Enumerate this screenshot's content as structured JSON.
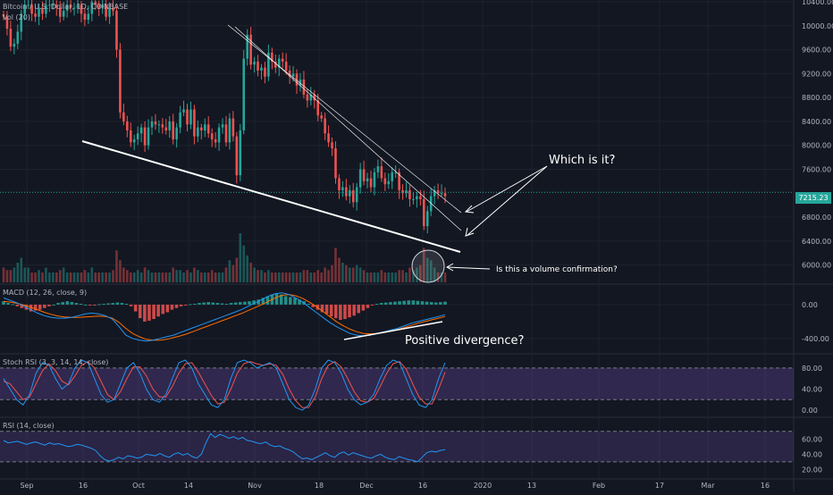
{
  "symbol": {
    "title": "Bitcoin / U.S. Dollar, 1D, COINBASE",
    "vol_label": "Vol (20)",
    "last_price": "7215.23"
  },
  "annotations": {
    "which": "Which is it?",
    "volume": "Is this a volume confirmation?",
    "divergence": "Positive divergence?"
  },
  "indicators": {
    "macd": "MACD (12, 26, close, 9)",
    "stoch": "Stoch RSI (3, 3, 14, 14, close)",
    "rsi": "RSI (14, close)"
  },
  "colors": {
    "background": "#131722",
    "up": "#26a69a",
    "down": "#ef5350",
    "macd_line": "#2196f3",
    "signal_line": "#ff6d00",
    "stoch_k": "#2196f3",
    "stoch_d": "#ef5350",
    "rsi_line": "#2196f3",
    "band": "#7e57c2",
    "price_line": "#26a69a",
    "annotation": "#ffffff"
  },
  "time_axis": [
    "Sep",
    "16",
    "Oct",
    "14",
    "Nov",
    "18",
    "Dec",
    "16",
    "2020",
    "13",
    "Feb",
    "17",
    "Mar",
    "16"
  ],
  "chart_data": [
    {
      "type": "candlestick",
      "title": "Bitcoin / U.S. Dollar, 1D, COINBASE",
      "ylim": [
        5800,
        10400
      ],
      "y_ticks": [
        "10400.00",
        "10000.00",
        "9600.00",
        "9200.00",
        "8800.00",
        "8400.00",
        "8000.00",
        "7600.00",
        "6800.00",
        "6400.00",
        "6000.00"
      ],
      "close": [
        10150,
        9950,
        9650,
        9700,
        9900,
        10200,
        10350,
        10350,
        10200,
        10150,
        10300,
        10200,
        10350,
        10350,
        10350,
        10300,
        10150,
        10250,
        10350,
        10300,
        10300,
        10350,
        10200,
        10100,
        10200,
        10400,
        10350,
        10300,
        10350,
        10150,
        10300,
        10250,
        9600,
        8550,
        8400,
        8250,
        8050,
        8100,
        8200,
        8300,
        8000,
        8300,
        8400,
        8350,
        8350,
        8300,
        8250,
        8400,
        8100,
        8300,
        8550,
        8600,
        8350,
        8600,
        8150,
        8300,
        8250,
        8350,
        8200,
        8100,
        8050,
        8300,
        8350,
        8050,
        8450,
        8150,
        7500,
        8250,
        9450,
        9850,
        9350,
        9400,
        9250,
        9300,
        9150,
        9550,
        9400,
        9300,
        9450,
        9400,
        9250,
        9150,
        9200,
        9000,
        9100,
        8850,
        8750,
        8850,
        8750,
        8500,
        8450,
        8200,
        8050,
        7950,
        7450,
        7250,
        7300,
        7150,
        7250,
        7050,
        7300,
        7600,
        7400,
        7450,
        7300,
        7550,
        7650,
        7450,
        7350,
        7400,
        7550,
        7550,
        7250,
        7200,
        7250,
        7100,
        7100,
        7150,
        7100,
        6650,
        6900,
        7150,
        7250,
        7200,
        7200,
        7150
      ],
      "volume_rel": [
        0.3,
        0.25,
        0.25,
        0.3,
        0.4,
        0.5,
        0.3,
        0.3,
        0.2,
        0.2,
        0.25,
        0.2,
        0.3,
        0.2,
        0.2,
        0.2,
        0.25,
        0.3,
        0.2,
        0.2,
        0.2,
        0.2,
        0.2,
        0.25,
        0.2,
        0.3,
        0.2,
        0.2,
        0.2,
        0.2,
        0.2,
        0.25,
        0.65,
        0.45,
        0.3,
        0.25,
        0.2,
        0.2,
        0.25,
        0.2,
        0.3,
        0.25,
        0.2,
        0.2,
        0.2,
        0.2,
        0.2,
        0.2,
        0.3,
        0.25,
        0.25,
        0.2,
        0.25,
        0.2,
        0.3,
        0.25,
        0.2,
        0.2,
        0.2,
        0.25,
        0.2,
        0.2,
        0.2,
        0.3,
        0.45,
        0.35,
        0.5,
        1.0,
        0.75,
        0.55,
        0.4,
        0.3,
        0.25,
        0.25,
        0.2,
        0.25,
        0.2,
        0.2,
        0.2,
        0.2,
        0.2,
        0.2,
        0.2,
        0.2,
        0.2,
        0.25,
        0.25,
        0.2,
        0.2,
        0.25,
        0.2,
        0.3,
        0.25,
        0.35,
        0.7,
        0.5,
        0.4,
        0.35,
        0.3,
        0.3,
        0.35,
        0.3,
        0.25,
        0.2,
        0.2,
        0.2,
        0.2,
        0.25,
        0.2,
        0.2,
        0.2,
        0.2,
        0.25,
        0.25,
        0.2,
        0.3,
        0.25,
        0.3,
        0.35,
        0.7,
        0.5,
        0.45,
        0.3,
        0.2,
        0.2,
        0.2
      ]
    },
    {
      "type": "histogram+line",
      "title": "MACD (12, 26, close, 9)",
      "ylim": [
        -560,
        200
      ],
      "y_ticks": [
        "0.00",
        "-400.00"
      ],
      "histogram": [
        40,
        20,
        5,
        -20,
        -40,
        -60,
        -80,
        -70,
        -60,
        -40,
        -20,
        0,
        20,
        30,
        40,
        30,
        20,
        10,
        0,
        -10,
        -5,
        5,
        10,
        15,
        20,
        25,
        20,
        10,
        -20,
        -80,
        -160,
        -200,
        -190,
        -170,
        -140,
        -110,
        -90,
        -60,
        -40,
        -20,
        -10,
        5,
        10,
        20,
        25,
        30,
        25,
        20,
        15,
        10,
        20,
        25,
        30,
        35,
        40,
        50,
        60,
        80,
        100,
        120,
        130,
        120,
        100,
        90,
        80,
        60,
        40,
        10,
        -30,
        -60,
        -90,
        -110,
        -140,
        -160,
        -180,
        -170,
        -150,
        -130,
        -100,
        -70,
        -40,
        -10,
        10,
        20,
        25,
        30,
        35,
        40,
        45,
        50,
        50,
        45,
        40,
        35,
        30,
        25,
        30,
        35
      ],
      "macd": [
        80,
        50,
        20,
        -20,
        -60,
        -100,
        -130,
        -150,
        -160,
        -160,
        -150,
        -130,
        -110,
        -100,
        -110,
        -130,
        -170,
        -260,
        -360,
        -400,
        -420,
        -430,
        -420,
        -400,
        -380,
        -360,
        -330,
        -300,
        -270,
        -240,
        -210,
        -180,
        -150,
        -120,
        -90,
        -60,
        -20,
        20,
        60,
        100,
        130,
        140,
        120,
        80,
        30,
        -30,
        -90,
        -150,
        -210,
        -260,
        -300,
        -340,
        -360,
        -370,
        -360,
        -340,
        -320,
        -300,
        -280,
        -250,
        -220,
        -200,
        -180,
        -160,
        -140,
        -120
      ],
      "signal": [
        40,
        30,
        15,
        -5,
        -30,
        -60,
        -90,
        -115,
        -135,
        -145,
        -150,
        -150,
        -145,
        -140,
        -135,
        -140,
        -160,
        -210,
        -280,
        -340,
        -380,
        -410,
        -420,
        -420,
        -410,
        -390,
        -370,
        -345,
        -315,
        -285,
        -255,
        -225,
        -195,
        -165,
        -135,
        -105,
        -70,
        -35,
        0,
        40,
        80,
        110,
        120,
        105,
        75,
        30,
        -20,
        -80,
        -140,
        -200,
        -250,
        -290,
        -320,
        -340,
        -345,
        -340,
        -330,
        -315,
        -295,
        -270,
        -245,
        -220,
        -200,
        -180,
        -160,
        -140
      ]
    },
    {
      "type": "line",
      "title": "Stoch RSI (3, 3, 14, 14, close)",
      "ylim": [
        -10,
        100
      ],
      "y_ticks": [
        "80.00",
        "40.00",
        "0.00"
      ],
      "k": [
        60,
        40,
        20,
        10,
        30,
        70,
        90,
        85,
        60,
        40,
        50,
        80,
        95,
        90,
        60,
        30,
        15,
        20,
        50,
        80,
        90,
        70,
        40,
        20,
        15,
        30,
        60,
        90,
        95,
        80,
        50,
        30,
        10,
        5,
        20,
        60,
        90,
        95,
        90,
        80,
        85,
        90,
        80,
        50,
        20,
        5,
        0,
        10,
        40,
        80,
        95,
        90,
        70,
        40,
        20,
        10,
        15,
        30,
        60,
        85,
        95,
        90,
        60,
        30,
        10,
        5,
        20,
        60,
        90
      ],
      "d": [
        55,
        50,
        35,
        20,
        25,
        50,
        75,
        88,
        75,
        55,
        48,
        65,
        85,
        92,
        80,
        55,
        30,
        20,
        35,
        60,
        82,
        82,
        65,
        40,
        25,
        25,
        45,
        70,
        88,
        90,
        72,
        50,
        28,
        12,
        15,
        40,
        70,
        88,
        92,
        88,
        85,
        88,
        85,
        68,
        40,
        18,
        5,
        5,
        25,
        60,
        85,
        92,
        82,
        60,
        35,
        18,
        15,
        22,
        45,
        70,
        88,
        92,
        78,
        50,
        25,
        12,
        12,
        40,
        72
      ]
    },
    {
      "type": "line",
      "title": "RSI (14, close)",
      "ylim": [
        10,
        85
      ],
      "y_ticks": [
        "60.00",
        "40.00",
        "20.00"
      ],
      "bands": [
        70,
        30
      ],
      "values": [
        58,
        55,
        56,
        57,
        55,
        53,
        55,
        56,
        54,
        52,
        55,
        53,
        54,
        52,
        50,
        51,
        53,
        52,
        50,
        48,
        45,
        38,
        33,
        31,
        33,
        36,
        34,
        38,
        37,
        35,
        36,
        40,
        39,
        38,
        41,
        38,
        36,
        40,
        42,
        39,
        41,
        37,
        35,
        40,
        55,
        67,
        62,
        66,
        64,
        61,
        63,
        60,
        62,
        58,
        57,
        55,
        54,
        56,
        52,
        50,
        51,
        48,
        46,
        43,
        38,
        34,
        35,
        33,
        36,
        39,
        42,
        38,
        36,
        41,
        43,
        39,
        42,
        40,
        38,
        36,
        35,
        38,
        40,
        36,
        34,
        33,
        37,
        35,
        33,
        32,
        30,
        36,
        42,
        44,
        43,
        45,
        46
      ]
    }
  ]
}
